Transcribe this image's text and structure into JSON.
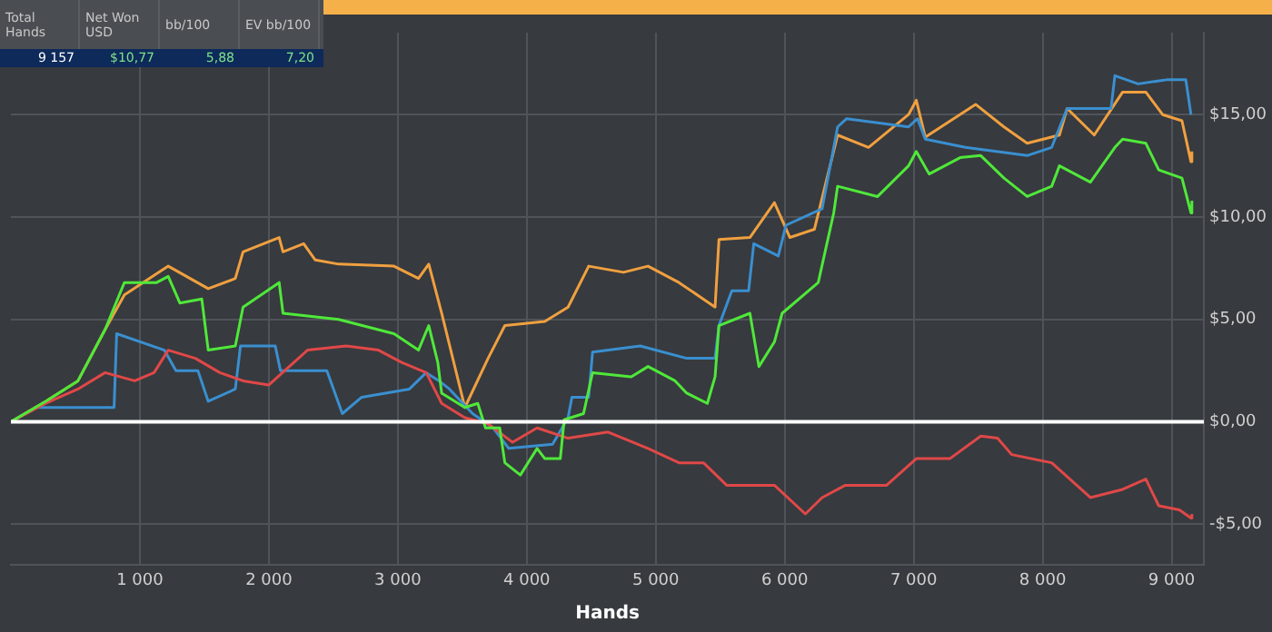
{
  "chart_data": {
    "type": "line",
    "xlabel": "Hands",
    "annotations": [
      "Total Hands",
      "Net Won USD",
      "bb/100",
      "EV bb/100",
      "9 157",
      "$10,77",
      "5,88",
      "7,20"
    ],
    "xlim": [
      0,
      9250
    ],
    "ylim": [
      -7,
      19
    ],
    "xticks": [
      {
        "value": 1000,
        "label": "1 000"
      },
      {
        "value": 2000,
        "label": "2 000"
      },
      {
        "value": 3000,
        "label": "3 000"
      },
      {
        "value": 4000,
        "label": "4 000"
      },
      {
        "value": 5000,
        "label": "5 000"
      },
      {
        "value": 6000,
        "label": "6 000"
      },
      {
        "value": 7000,
        "label": "7 000"
      },
      {
        "value": 8000,
        "label": "8 000"
      },
      {
        "value": 9000,
        "label": "9 000"
      }
    ],
    "yticks": [
      {
        "value": -5,
        "label": "-$5,00"
      },
      {
        "value": 0,
        "label": "$0,00"
      },
      {
        "value": 5,
        "label": "$5,00"
      },
      {
        "value": 10,
        "label": "$10,00"
      },
      {
        "value": 15,
        "label": "$15,00"
      }
    ],
    "grid": true,
    "ref_lines": [
      {
        "axis": "y",
        "value": 0,
        "color": "#ffffff"
      }
    ],
    "series": [
      {
        "color": "#f0a040",
        "x": [
          0,
          270,
          520,
          730,
          880,
          1220,
          1530,
          1740,
          1800,
          2080,
          2110,
          2270,
          2360,
          2540,
          2970,
          3160,
          3240,
          3340,
          3520,
          3700,
          3830,
          4140,
          4320,
          4480,
          4750,
          4940,
          5180,
          5460,
          5490,
          5730,
          5920,
          6040,
          6230,
          6410,
          6650,
          6960,
          7020,
          7090,
          7480,
          7700,
          7880,
          8130,
          8190,
          8400,
          8620,
          8800,
          8930,
          9080,
          9150,
          9157
        ],
        "values": [
          0,
          1.0,
          2.0,
          4.5,
          6.2,
          7.6,
          6.5,
          7.0,
          8.3,
          9.0,
          8.3,
          8.7,
          7.9,
          7.7,
          7.6,
          7.0,
          7.7,
          5.3,
          0.7,
          3.1,
          4.7,
          4.9,
          5.6,
          7.6,
          7.3,
          7.6,
          6.8,
          5.6,
          8.9,
          9.0,
          10.7,
          9.0,
          9.4,
          14.0,
          13.4,
          15.0,
          15.7,
          13.9,
          15.5,
          14.4,
          13.6,
          14.0,
          15.3,
          14.0,
          16.1,
          16.1,
          15.0,
          14.7,
          12.7,
          13.2
        ]
      },
      {
        "color": "#3a8fd0",
        "x": [
          0,
          200,
          800,
          820,
          1190,
          1280,
          1450,
          1530,
          1740,
          1780,
          2050,
          2090,
          2450,
          2570,
          2720,
          3090,
          3220,
          3320,
          3400,
          3580,
          3740,
          3860,
          4200,
          4320,
          4350,
          4480,
          4510,
          4880,
          5240,
          5460,
          5490,
          5590,
          5720,
          5760,
          5950,
          6010,
          6290,
          6410,
          6480,
          6960,
          7030,
          7090,
          7400,
          7880,
          8070,
          8190,
          8530,
          8560,
          8740,
          8960,
          9110,
          9150,
          9157
        ],
        "values": [
          0,
          0.7,
          0.7,
          4.3,
          3.5,
          2.5,
          2.5,
          1.0,
          1.6,
          3.7,
          3.7,
          2.5,
          2.5,
          0.4,
          1.2,
          1.6,
          2.4,
          2.0,
          1.6,
          0.4,
          -0.3,
          -1.3,
          -1.1,
          0.2,
          1.2,
          1.2,
          3.4,
          3.7,
          3.1,
          3.1,
          4.7,
          6.4,
          6.4,
          8.7,
          8.1,
          9.6,
          10.4,
          14.4,
          14.8,
          14.4,
          14.8,
          13.8,
          13.4,
          13.0,
          13.4,
          15.3,
          15.3,
          16.9,
          16.5,
          16.7,
          16.7,
          15.0,
          15.0
        ]
      },
      {
        "color": "#e04848",
        "x": [
          0,
          270,
          520,
          730,
          960,
          1110,
          1220,
          1430,
          1620,
          1800,
          2000,
          2300,
          2600,
          2850,
          3030,
          3220,
          3340,
          3520,
          3700,
          3890,
          4080,
          4320,
          4630,
          4940,
          5180,
          5370,
          5550,
          5920,
          6160,
          6290,
          6470,
          6790,
          7020,
          7280,
          7520,
          7650,
          7760,
          8070,
          8370,
          8620,
          8800,
          8900,
          9060,
          9150,
          9157
        ],
        "values": [
          0,
          0.9,
          1.6,
          2.4,
          2.0,
          2.4,
          3.5,
          3.1,
          2.4,
          2.0,
          1.8,
          3.5,
          3.7,
          3.5,
          2.9,
          2.4,
          0.9,
          0.2,
          -0.1,
          -1.0,
          -0.3,
          -0.8,
          -0.5,
          -1.3,
          -2.0,
          -2.0,
          -3.1,
          -3.1,
          -4.5,
          -3.7,
          -3.1,
          -3.1,
          -1.8,
          -1.8,
          -0.7,
          -0.8,
          -1.6,
          -2.0,
          -3.7,
          -3.3,
          -2.8,
          -4.1,
          -4.3,
          -4.7,
          -4.5
        ]
      },
      {
        "color": "#4fe83a",
        "x": [
          0,
          270,
          520,
          730,
          880,
          1130,
          1220,
          1310,
          1480,
          1530,
          1740,
          1800,
          2080,
          2110,
          2540,
          2970,
          3160,
          3240,
          3310,
          3340,
          3520,
          3620,
          3680,
          3790,
          3830,
          3950,
          4080,
          4140,
          4260,
          4290,
          4440,
          4510,
          4810,
          4940,
          5150,
          5240,
          5400,
          5460,
          5490,
          5730,
          5800,
          5920,
          5980,
          6260,
          6380,
          6410,
          6720,
          6960,
          7020,
          7120,
          7360,
          7520,
          7700,
          7880,
          8070,
          8130,
          8370,
          8560,
          8620,
          8800,
          8900,
          9080,
          9150,
          9157
        ],
        "values": [
          0,
          1.0,
          2.0,
          4.5,
          6.8,
          6.8,
          7.1,
          5.8,
          6.0,
          3.5,
          3.7,
          5.6,
          6.8,
          5.3,
          5.0,
          4.3,
          3.5,
          4.7,
          2.9,
          1.4,
          0.7,
          0.9,
          -0.3,
          -0.3,
          -2.0,
          -2.6,
          -1.3,
          -1.8,
          -1.8,
          0.1,
          0.4,
          2.4,
          2.2,
          2.7,
          2.0,
          1.4,
          0.9,
          2.2,
          4.7,
          5.3,
          2.7,
          3.9,
          5.3,
          6.8,
          10.2,
          11.5,
          11.0,
          12.5,
          13.2,
          12.1,
          12.9,
          13.0,
          11.9,
          11.0,
          11.5,
          12.5,
          11.7,
          13.4,
          13.8,
          13.6,
          12.3,
          11.9,
          10.2,
          10.8
        ]
      }
    ]
  }
}
